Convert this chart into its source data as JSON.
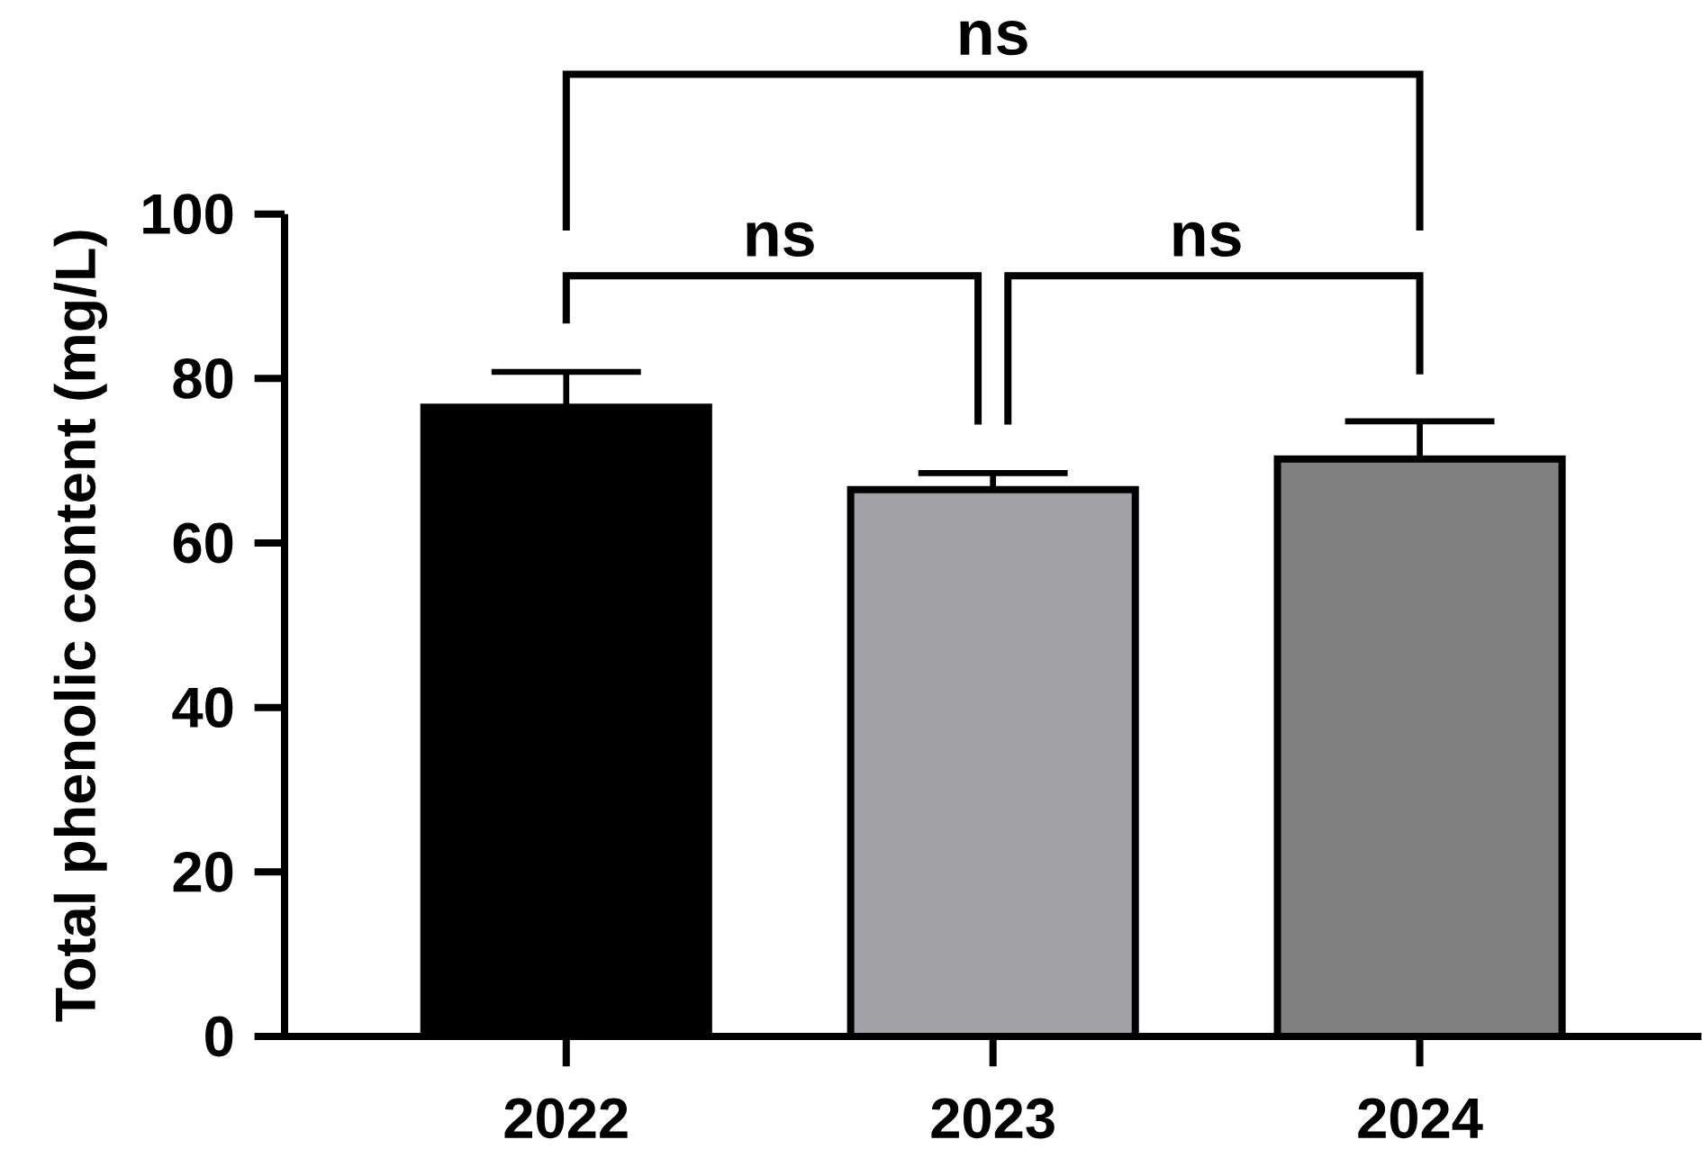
{
  "chart_data": {
    "type": "bar",
    "ylabel": "Total phenolic content (mg/L)",
    "categories": [
      "2022",
      "2023",
      "2024"
    ],
    "values": [
      76.5,
      66.5,
      70.2
    ],
    "errors": [
      [
        76.5,
        80.8
      ],
      [
        66.5,
        68.5
      ],
      [
        70.2,
        74.8
      ]
    ],
    "colors": [
      "#000000",
      "#a2a2a6",
      "#808080"
    ],
    "ylim": [
      0,
      100
    ],
    "yticks": [
      0,
      20,
      40,
      60,
      80,
      100
    ],
    "grid": false,
    "annotations": [
      "ns",
      "ns",
      "ns"
    ]
  }
}
